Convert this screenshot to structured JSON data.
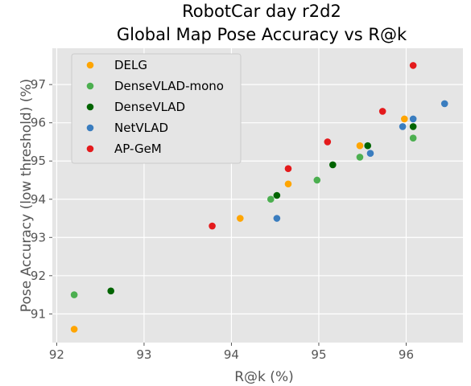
{
  "chart_data": {
    "type": "scatter",
    "title": [
      "RobotCar day r2d2",
      "Global Map Pose Accuracy vs R@k"
    ],
    "xlabel": "R@k (%)",
    "ylabel": "Pose Accuracy (low threshold) (%)",
    "xlim": [
      91.95,
      96.65
    ],
    "ylim": [
      90.25,
      97.95
    ],
    "xticks": [
      92,
      93,
      94,
      95,
      96
    ],
    "yticks": [
      91,
      92,
      93,
      94,
      95,
      96,
      97
    ],
    "grid": true,
    "legend_position": "top-left",
    "series": [
      {
        "name": "DELG",
        "color": "#ffa500",
        "points": [
          [
            92.2,
            90.6
          ],
          [
            94.1,
            93.5
          ],
          [
            94.65,
            94.4
          ],
          [
            95.47,
            95.4
          ],
          [
            95.98,
            96.1
          ]
        ]
      },
      {
        "name": "DenseVLAD-mono",
        "color": "#4caf50",
        "points": [
          [
            92.2,
            91.5
          ],
          [
            94.45,
            94.0
          ],
          [
            94.98,
            94.5
          ],
          [
            95.47,
            95.1
          ],
          [
            96.08,
            95.6
          ]
        ]
      },
      {
        "name": "DenseVLAD",
        "color": "#006400",
        "points": [
          [
            92.62,
            91.6
          ],
          [
            94.52,
            94.1
          ],
          [
            95.16,
            94.9
          ],
          [
            95.56,
            95.4
          ],
          [
            96.08,
            95.9
          ]
        ]
      },
      {
        "name": "NetVLAD",
        "color": "#3a7dbf",
        "points": [
          [
            94.52,
            93.5
          ],
          [
            95.59,
            95.2
          ],
          [
            95.96,
            95.9
          ],
          [
            96.08,
            96.1
          ],
          [
            96.44,
            96.5
          ]
        ]
      },
      {
        "name": "AP-GeM",
        "color": "#e41a1c",
        "points": [
          [
            93.78,
            93.3
          ],
          [
            94.65,
            94.8
          ],
          [
            95.1,
            95.5
          ],
          [
            95.73,
            96.3
          ],
          [
            96.08,
            97.5
          ]
        ]
      }
    ]
  }
}
